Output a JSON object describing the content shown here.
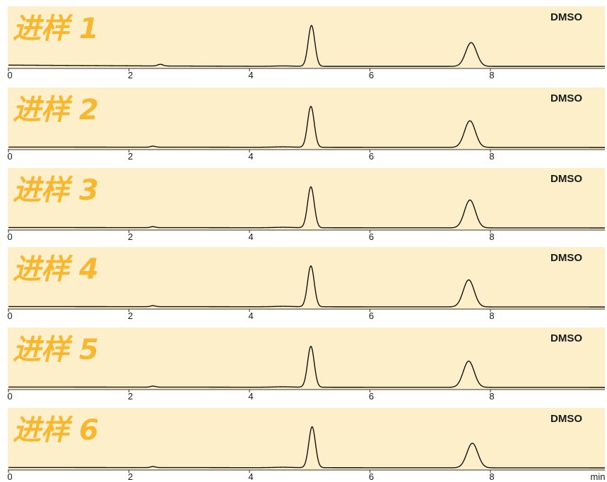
{
  "colors": {
    "panel_background": "#fdefc9",
    "panel_label": "#f7b731",
    "trace": "#111111",
    "axis": "#333333",
    "text": "#1a1a1a"
  },
  "chart_data": {
    "type": "line",
    "xlim": [
      0,
      9.9
    ],
    "ylim": [
      0,
      1
    ],
    "x_ticks": [
      0,
      2,
      4,
      6,
      8
    ],
    "x_unit": "min",
    "grid": false,
    "panels": [
      {
        "label": "进样 1",
        "tag": "DMSO",
        "baseline": [
          [
            0,
            0.03
          ],
          [
            2.3,
            0.01
          ],
          [
            4.4,
            0.0
          ],
          [
            9.9,
            0.0
          ]
        ],
        "peaks": [
          {
            "rt": 2.52,
            "height": 0.04,
            "width": 0.045
          },
          {
            "rt": 4.56,
            "height": 0.01,
            "width": 0.15
          },
          {
            "rt": 5.03,
            "height": 1.0,
            "width": 0.055
          },
          {
            "rt": 7.68,
            "height": 0.58,
            "width": 0.09
          }
        ]
      },
      {
        "label": "进样 2",
        "tag": "DMSO",
        "baseline": [
          [
            0,
            0.01
          ],
          [
            9.9,
            0.0
          ]
        ],
        "peaks": [
          {
            "rt": 2.4,
            "height": 0.025,
            "width": 0.04
          },
          {
            "rt": 4.56,
            "height": 0.01,
            "width": 0.15
          },
          {
            "rt": 5.02,
            "height": 1.0,
            "width": 0.055
          },
          {
            "rt": 7.66,
            "height": 0.65,
            "width": 0.09
          }
        ]
      },
      {
        "label": "进样 3",
        "tag": "DMSO",
        "baseline": [
          [
            0,
            0.01
          ],
          [
            9.9,
            0.0
          ]
        ],
        "peaks": [
          {
            "rt": 2.4,
            "height": 0.025,
            "width": 0.04
          },
          {
            "rt": 4.56,
            "height": 0.01,
            "width": 0.15
          },
          {
            "rt": 5.02,
            "height": 1.0,
            "width": 0.055
          },
          {
            "rt": 7.66,
            "height": 0.68,
            "width": 0.09
          }
        ]
      },
      {
        "label": "进样 4",
        "tag": "DMSO",
        "baseline": [
          [
            0,
            0.01
          ],
          [
            9.9,
            0.0
          ]
        ],
        "peaks": [
          {
            "rt": 2.4,
            "height": 0.025,
            "width": 0.04
          },
          {
            "rt": 4.56,
            "height": 0.01,
            "width": 0.15
          },
          {
            "rt": 5.02,
            "height": 1.0,
            "width": 0.055
          },
          {
            "rt": 7.64,
            "height": 0.66,
            "width": 0.09
          }
        ]
      },
      {
        "label": "进样 5",
        "tag": "DMSO",
        "baseline": [
          [
            0,
            0.01
          ],
          [
            9.9,
            0.0
          ]
        ],
        "peaks": [
          {
            "rt": 2.4,
            "height": 0.025,
            "width": 0.04
          },
          {
            "rt": 4.56,
            "height": 0.01,
            "width": 0.15
          },
          {
            "rt": 5.02,
            "height": 1.0,
            "width": 0.055
          },
          {
            "rt": 7.64,
            "height": 0.64,
            "width": 0.09
          }
        ]
      },
      {
        "label": "进样 6",
        "tag": "DMSO",
        "baseline": [
          [
            0,
            0.01
          ],
          [
            9.9,
            0.0
          ]
        ],
        "peaks": [
          {
            "rt": 2.4,
            "height": 0.025,
            "width": 0.04
          },
          {
            "rt": 4.56,
            "height": 0.01,
            "width": 0.15
          },
          {
            "rt": 5.04,
            "height": 1.0,
            "width": 0.055
          },
          {
            "rt": 7.7,
            "height": 0.6,
            "width": 0.09
          }
        ]
      }
    ]
  }
}
